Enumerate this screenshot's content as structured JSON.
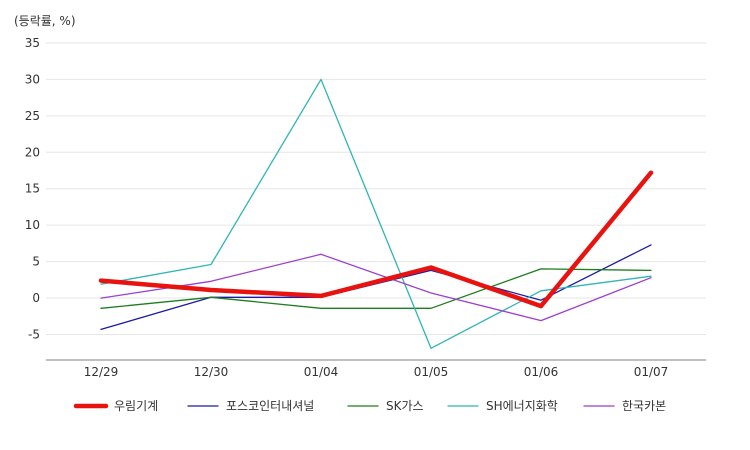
{
  "chart_data": {
    "type": "line",
    "unit_label": "(등락률, %)",
    "categories": [
      "12/29",
      "12/30",
      "01/04",
      "01/05",
      "01/06",
      "01/07"
    ],
    "ylim": [
      -8.5,
      35
    ],
    "yticks": [
      35,
      30,
      25,
      20,
      15,
      10,
      5,
      0,
      -5
    ],
    "grid": true,
    "legend_position": "bottom",
    "series": [
      {
        "name": "우림기계",
        "color": "#e8130f",
        "width": 4.5,
        "values": [
          2.4,
          1.1,
          0.3,
          4.2,
          -1.1,
          17.2
        ]
      },
      {
        "name": "포스코인터내셔널",
        "color": "#1b1aa8",
        "width": 1.3,
        "values": [
          -4.3,
          0.1,
          0.1,
          3.8,
          -0.3,
          7.3
        ]
      },
      {
        "name": "SK가스",
        "color": "#1e7d1e",
        "width": 1.3,
        "values": [
          -1.4,
          0.1,
          -1.4,
          -1.4,
          4.0,
          3.8
        ]
      },
      {
        "name": "SH에너지화학",
        "color": "#2fb5b5",
        "width": 1.3,
        "values": [
          1.9,
          4.6,
          30.0,
          -6.9,
          1.0,
          3.0
        ]
      },
      {
        "name": "한국카본",
        "color": "#9b3fcf",
        "width": 1.3,
        "values": [
          0.0,
          2.3,
          6.0,
          0.7,
          -3.1,
          2.8
        ]
      }
    ]
  }
}
